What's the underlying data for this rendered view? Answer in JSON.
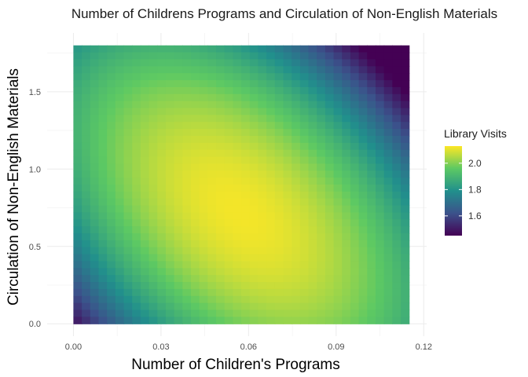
{
  "chart_data": {
    "type": "heatmap",
    "title": "Number of Childrens Programs and Circulation of Non-English Materials",
    "xlabel": "Number of Children's Programs",
    "ylabel": "Circulation of Non-English Materials",
    "x_ticks": [
      "0.00",
      "0.03",
      "0.06",
      "0.09",
      "0.12"
    ],
    "y_ticks": [
      "0.0",
      "0.5",
      "1.0",
      "1.5"
    ],
    "x_tick_values": [
      0.0,
      0.03,
      0.06,
      0.09,
      0.12
    ],
    "y_tick_values": [
      0.0,
      0.5,
      1.0,
      1.5
    ],
    "xlim": [
      -0.009,
      0.121
    ],
    "ylim": [
      -0.08,
      1.88
    ],
    "x_range": [
      0.0,
      0.115
    ],
    "y_range": [
      0.0,
      1.8
    ],
    "grid": true,
    "fill_label": "Library Visits",
    "fill_range": [
      1.45,
      2.13
    ],
    "legend_ticks": [
      "2.0",
      "1.8",
      "1.6"
    ],
    "legend_tick_values": [
      2.0,
      1.8,
      1.6
    ],
    "legend_position": "right",
    "colormap": "viridis",
    "colors": [
      "#440154",
      "#3b528b",
      "#21908c",
      "#5dc963",
      "#fde725"
    ],
    "surface": {
      "peak_x": 0.057,
      "peak_y": 0.72,
      "peak_value": 2.12,
      "sample_values": [
        {
          "x": 0.0,
          "y": 0.0,
          "value": 1.47
        },
        {
          "x": 0.115,
          "y": 1.8,
          "value": 1.45
        },
        {
          "x": 0.0,
          "y": 1.8,
          "value": 1.8
        },
        {
          "x": 0.115,
          "y": 0.0,
          "value": 1.9
        },
        {
          "x": 0.057,
          "y": 0.72,
          "value": 2.12
        }
      ]
    }
  }
}
